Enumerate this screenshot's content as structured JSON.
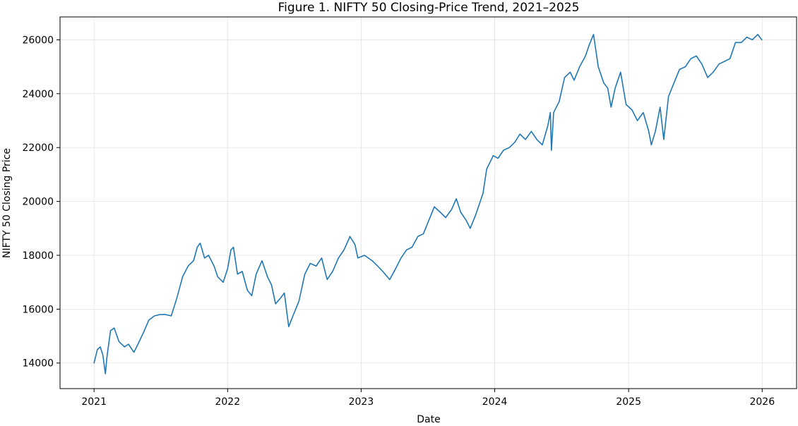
{
  "chart_data": {
    "type": "line",
    "title": "Figure 1. NIFTY 50 Closing-Price Trend, 2021–2025",
    "xlabel": "Date",
    "ylabel": "NIFTY 50 Closing Price",
    "x_ticks": [
      "2021",
      "2022",
      "2023",
      "2024",
      "2025",
      "2026"
    ],
    "y_ticks": [
      14000,
      16000,
      18000,
      20000,
      22000,
      24000,
      26000
    ],
    "xlim": [
      "2020-09-30",
      "2026-04-05"
    ],
    "ylim": [
      13050,
      26850
    ],
    "grid": true,
    "color": "#1f77b4",
    "series": [
      {
        "x": [
          "2021-01-01",
          "2021-01-10",
          "2021-01-18",
          "2021-01-25",
          "2021-02-01",
          "2021-02-05",
          "2021-02-15",
          "2021-02-25",
          "2021-03-10",
          "2021-03-25",
          "2021-04-05",
          "2021-04-20",
          "2021-05-01",
          "2021-05-15",
          "2021-05-31",
          "2021-06-15",
          "2021-06-30",
          "2021-07-15",
          "2021-07-31",
          "2021-08-15",
          "2021-08-31",
          "2021-09-15",
          "2021-09-30",
          "2021-10-10",
          "2021-10-18",
          "2021-10-30",
          "2021-11-10",
          "2021-11-25",
          "2021-12-05",
          "2021-12-20",
          "2022-01-01",
          "2022-01-10",
          "2022-01-17",
          "2022-01-28",
          "2022-02-10",
          "2022-02-24",
          "2022-03-08",
          "2022-03-20",
          "2022-04-05",
          "2022-04-20",
          "2022-05-01",
          "2022-05-12",
          "2022-05-25",
          "2022-06-05",
          "2022-06-17",
          "2022-06-30",
          "2022-07-15",
          "2022-07-31",
          "2022-08-15",
          "2022-08-31",
          "2022-09-15",
          "2022-09-30",
          "2022-10-15",
          "2022-10-31",
          "2022-11-15",
          "2022-11-30",
          "2022-12-01",
          "2022-12-15",
          "2022-12-23",
          "2023-01-10",
          "2023-01-31",
          "2023-02-15",
          "2023-03-01",
          "2023-03-20",
          "2023-04-05",
          "2023-04-20",
          "2023-05-05",
          "2023-05-20",
          "2023-06-05",
          "2023-06-20",
          "2023-07-05",
          "2023-07-20",
          "2023-08-05",
          "2023-08-20",
          "2023-09-05",
          "2023-09-18",
          "2023-09-30",
          "2023-10-15",
          "2023-10-26",
          "2023-11-10",
          "2023-11-30",
          "2023-12-10",
          "2023-12-28",
          "2024-01-10",
          "2024-01-25",
          "2024-02-10",
          "2024-02-25",
          "2024-03-10",
          "2024-03-25",
          "2024-04-10",
          "2024-04-25",
          "2024-05-10",
          "2024-05-25",
          "2024-06-01",
          "2024-06-04",
          "2024-06-10",
          "2024-06-25",
          "2024-07-10",
          "2024-07-25",
          "2024-08-05",
          "2024-08-20",
          "2024-09-05",
          "2024-09-15",
          "2024-09-27",
          "2024-10-10",
          "2024-10-25",
          "2024-11-05",
          "2024-11-14",
          "2024-11-25",
          "2024-12-10",
          "2024-12-25",
          "2025-01-10",
          "2025-01-25",
          "2025-02-10",
          "2025-02-25",
          "2025-03-04",
          "2025-03-15",
          "2025-03-28",
          "2025-04-07",
          "2025-04-20",
          "2025-05-05",
          "2025-05-20",
          "2025-06-05",
          "2025-06-20",
          "2025-07-05",
          "2025-07-20",
          "2025-08-05",
          "2025-08-20",
          "2025-09-05",
          "2025-09-20",
          "2025-10-05",
          "2025-10-20",
          "2025-11-05",
          "2025-11-20",
          "2025-12-05",
          "2025-12-20",
          "2025-12-31"
        ],
        "y": [
          14000,
          14500,
          14600,
          14300,
          13600,
          14200,
          15200,
          15300,
          14800,
          14600,
          14700,
          14400,
          14700,
          15100,
          15600,
          15750,
          15800,
          15800,
          15750,
          16400,
          17200,
          17600,
          17800,
          18300,
          18450,
          17900,
          18000,
          17600,
          17200,
          17000,
          17500,
          18200,
          18300,
          17300,
          17400,
          16700,
          16500,
          17300,
          17800,
          17200,
          16900,
          16200,
          16400,
          16600,
          15350,
          15800,
          16300,
          17300,
          17700,
          17600,
          17900,
          17100,
          17400,
          17900,
          18200,
          18650,
          18700,
          18400,
          17900,
          18000,
          17800,
          17600,
          17400,
          17100,
          17500,
          17900,
          18200,
          18300,
          18700,
          18800,
          19300,
          19800,
          19600,
          19400,
          19700,
          20100,
          19600,
          19300,
          19000,
          19500,
          20300,
          21200,
          21700,
          21600,
          21900,
          22000,
          22200,
          22500,
          22300,
          22600,
          22300,
          22100,
          22800,
          23300,
          21900,
          23300,
          23700,
          24600,
          24800,
          24500,
          25000,
          25400,
          25800,
          26200,
          25000,
          24400,
          24200,
          23500,
          24200,
          24800,
          23600,
          23400,
          23000,
          23300,
          22600,
          22100,
          22600,
          23500,
          22300,
          23900,
          24400,
          24900,
          25000,
          25300,
          25400,
          25100,
          24600,
          24800,
          25100,
          25200,
          25300,
          25900,
          25900,
          26100,
          26000,
          26200,
          26000
        ]
      }
    ]
  }
}
